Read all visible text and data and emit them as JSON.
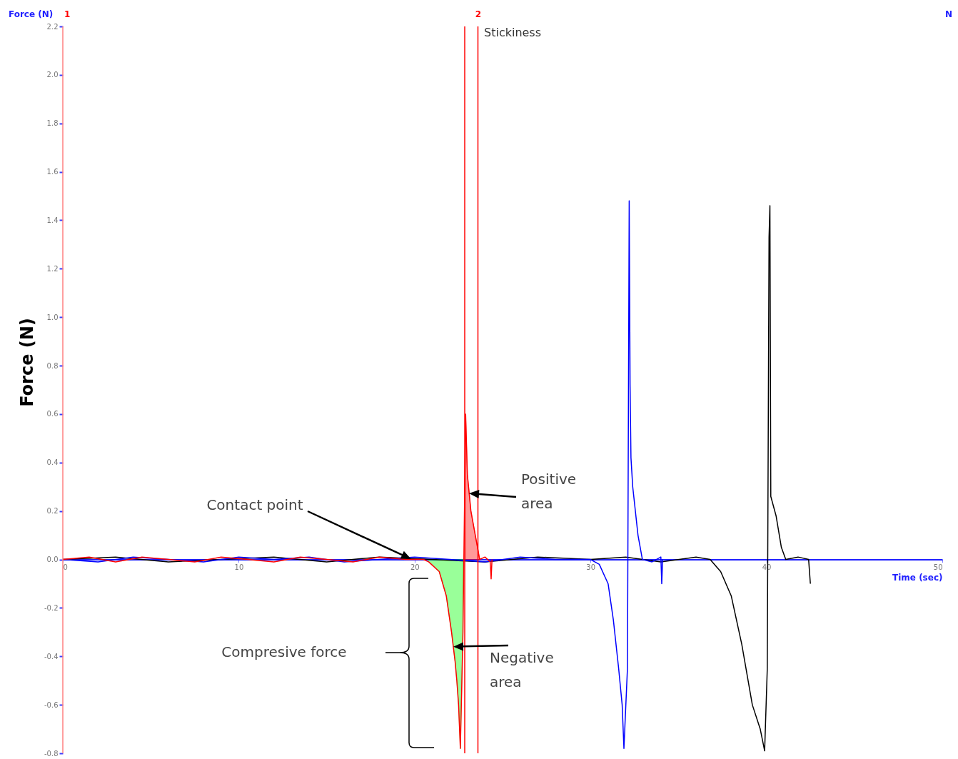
{
  "chart_data": {
    "type": "line",
    "ylabel": "Force (N)",
    "xlabel": "Time (sec)",
    "xlim": [
      0,
      50
    ],
    "xticks": [
      0,
      10,
      20,
      30,
      40,
      50
    ],
    "ylim": [
      -0.8,
      2.2
    ],
    "yticks": [
      -0.8,
      -0.6,
      -0.4,
      -0.2,
      {
        "value": 0,
        "label": "0.0"
      },
      0.2,
      0.4,
      0.6,
      0.8,
      {
        "value": 1,
        "label": "1.0"
      },
      1.2,
      1.4,
      1.6,
      1.8,
      {
        "value": 2,
        "label": "2.0"
      },
      2.2
    ],
    "grid": false,
    "marker": "none",
    "line_style": "solid",
    "series": [
      {
        "color": "#000000",
        "x": [
          0,
          3,
          6,
          9,
          12,
          15,
          18,
          21,
          24,
          27,
          30,
          32,
          34,
          36,
          36.8,
          37.4,
          38.0,
          38.6,
          39.2,
          39.65,
          39.9,
          40.05,
          40.15,
          40.2,
          40.25,
          40.55,
          40.85,
          41.1,
          41.8,
          42.4,
          42.5
        ],
        "values": [
          0,
          0.01,
          -0.01,
          0,
          0.01,
          -0.01,
          0.01,
          0,
          -0.01,
          0.01,
          0,
          0.01,
          -0.01,
          0.01,
          0,
          -0.05,
          -0.15,
          -0.35,
          -0.6,
          -0.7,
          -0.79,
          -0.45,
          1.33,
          1.46,
          0.26,
          0.18,
          0.05,
          0,
          0.01,
          0,
          -0.1
        ]
      },
      {
        "color": "#0000ff",
        "x": [
          0,
          2,
          4,
          6,
          8,
          10,
          12,
          14,
          16,
          18,
          20,
          22,
          24,
          26,
          28,
          30,
          30.5,
          31,
          31.3,
          31.6,
          31.8,
          31.9,
          32.1,
          32.2,
          32.25,
          32.3,
          32.4,
          32.7,
          32.95,
          33.5,
          34.0,
          34.05,
          34.1
        ],
        "values": [
          0,
          -0.01,
          0.01,
          0,
          -0.01,
          0.01,
          0,
          0.01,
          -0.01,
          0,
          0.01,
          0,
          -0.01,
          0.01,
          0,
          0,
          -0.02,
          -0.1,
          -0.25,
          -0.45,
          -0.6,
          -0.78,
          -0.45,
          1.48,
          0.72,
          0.42,
          0.3,
          0.1,
          0,
          -0.01,
          0.01,
          -0.1,
          0
        ]
      },
      {
        "color": "#ff0000",
        "x": [
          0,
          1.5,
          3,
          4.5,
          6,
          7.5,
          9,
          10.5,
          12,
          13.5,
          15,
          16.5,
          18,
          19.5,
          20.5,
          20.8,
          21.4,
          21.8,
          22.1,
          22.3,
          22.4,
          22.5,
          22.6,
          22.75,
          22.9,
          23.0,
          23.2,
          23.4,
          23.7,
          24.0,
          24.3,
          24.35,
          24.4
        ],
        "values": [
          0,
          0.01,
          -0.01,
          0.01,
          0,
          -0.01,
          0.01,
          0,
          -0.01,
          0.01,
          0,
          -0.01,
          0.01,
          0,
          0,
          -0.01,
          -0.05,
          -0.15,
          -0.3,
          -0.42,
          -0.5,
          -0.6,
          -0.78,
          -0.3,
          0.6,
          0.35,
          0.2,
          0.12,
          0,
          0.01,
          -0.01,
          -0.08,
          0
        ]
      },
      {
        "type": "area",
        "color": "#00ff00",
        "x": [
          20.8,
          21.4,
          21.8,
          22.1,
          22.3,
          22.4,
          22.5,
          22.6,
          22.75
        ],
        "values": [
          -0.01,
          -0.05,
          -0.15,
          -0.3,
          -0.42,
          -0.5,
          -0.6,
          -0.78,
          -0.3
        ]
      },
      {
        "type": "area",
        "color": "#ff0000",
        "x": [
          22.9,
          23.0,
          23.2,
          23.4,
          23.7
        ],
        "values": [
          0.6,
          0.35,
          0.2,
          0.12,
          0
        ]
      }
    ],
    "ref_lines": [
      {
        "axis": "x",
        "value": 0,
        "color": "#ff8080"
      },
      {
        "axis": "x",
        "value": 22.85,
        "color": "#ff0000"
      },
      {
        "axis": "x",
        "value": 23.6,
        "color": "#ff0000"
      }
    ],
    "annotations": [
      "Force (N)",
      "N",
      "1",
      "2",
      "Stickiness",
      "Contact point",
      "Positive area",
      {
        "text": "Negative area",
        "x": 22.2,
        "y": -0.36
      },
      "Compresive force"
    ]
  }
}
